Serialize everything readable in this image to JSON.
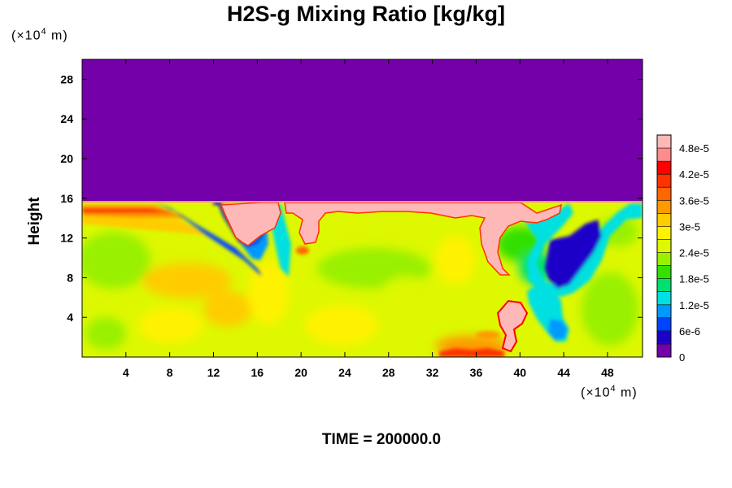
{
  "title": "H2S-g Mixing Ratio [kg/kg]",
  "footer": "TIME = 200000.0",
  "chart_data": {
    "type": "heatmap",
    "title": "H2S-g Mixing Ratio [kg/kg]",
    "xlabel": "",
    "ylabel": "Height",
    "x_unit": "(×10⁴ m)",
    "y_unit": "(×10⁴ m)",
    "x_ticks": [
      4,
      8,
      12,
      16,
      20,
      24,
      28,
      32,
      36,
      40,
      44,
      48
    ],
    "y_ticks": [
      4,
      8,
      12,
      16,
      20,
      24,
      28
    ],
    "xlim": [
      0,
      51.2
    ],
    "ylim": [
      0,
      30
    ],
    "colorbar": {
      "tick_labels": [
        "0",
        "6e-6",
        "1.2e-5",
        "1.8e-5",
        "2.4e-5",
        "3e-5",
        "3.6e-5",
        "4.2e-5",
        "4.8e-5"
      ],
      "tick_values": [
        0,
        6e-06,
        1.2e-05,
        1.8e-05,
        2.4e-05,
        3e-05,
        3.6e-05,
        4.2e-05,
        4.8e-05
      ],
      "levels": 17,
      "min": 0,
      "max": 5.1e-05,
      "colors": [
        "#7300a8",
        "#1d00c8",
        "#0044ff",
        "#0099ff",
        "#00e0e0",
        "#00e070",
        "#33e000",
        "#99f000",
        "#ddf800",
        "#fff200",
        "#ffcc00",
        "#ff9900",
        "#ff6600",
        "#ff3300",
        "#ff0000",
        "#ff8c8c",
        "#ffb8b8"
      ]
    },
    "boundary_layer_top": 15.5,
    "upper_layer_value": 0,
    "features": [
      {
        "label": "high-value plumes near top of layer",
        "x_range": [
          15,
          44
        ],
        "value": 5.1e-05
      },
      {
        "label": "low-value tongues",
        "x_range": [
          13,
          47
        ],
        "value": 6e-06
      },
      {
        "label": "background mixed layer",
        "value": 3.2e-05
      }
    ]
  }
}
